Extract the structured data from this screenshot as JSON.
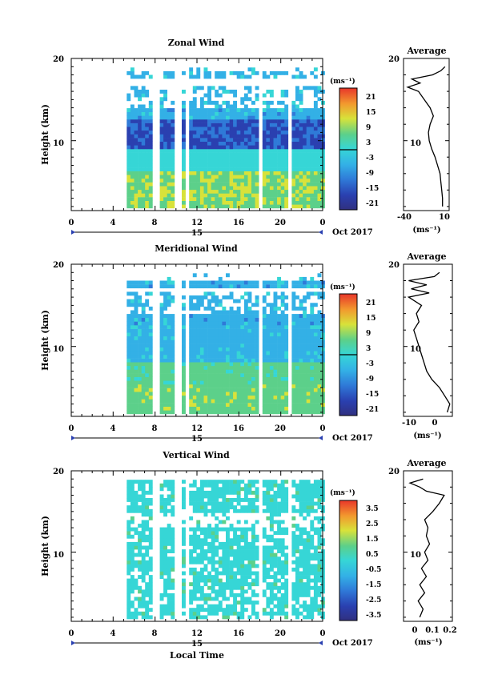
{
  "figure": {
    "xlabel": "Local Time",
    "date_label": "Oct 2017",
    "day_label": "15"
  },
  "chart_data": [
    {
      "type": "heatmap",
      "title": "Zonal Wind",
      "ylabel": "Height (km)",
      "unit_label": "(ms⁻¹)",
      "x_ticks": [
        "0",
        "4",
        "8",
        "12",
        "16",
        "20",
        "0"
      ],
      "y_ticks": [
        "10",
        "20"
      ],
      "xlim": [
        0,
        24
      ],
      "ylim": [
        1.5,
        20
      ],
      "colorbar_ticks": [
        "21",
        "15",
        "9",
        "3",
        "-3",
        "-9",
        "-15",
        "-21"
      ],
      "colorbar_range": [
        -24,
        24
      ],
      "data_time_start": 5.3,
      "data_gaps_hours": [
        [
          7.6,
          8.1
        ],
        [
          9.6,
          10.3
        ],
        [
          10.8,
          11.2
        ],
        [
          17.6,
          18.1
        ],
        [
          20.4,
          20.9
        ]
      ],
      "average_profile": {
        "title": "Average",
        "x_ticks": [
          "-40",
          "10"
        ],
        "xlim": [
          -40,
          15
        ],
        "x_unit": "(ms⁻¹)",
        "height_km": [
          2,
          3,
          4,
          5,
          6,
          7,
          8,
          9,
          10,
          11,
          12,
          13,
          14,
          15,
          16,
          16.5,
          17,
          17.5,
          18,
          18.5,
          19
        ],
        "values": [
          7,
          7,
          6,
          5,
          4,
          1,
          -2,
          -6,
          -9,
          -10,
          -8,
          -4,
          -8,
          -15,
          -22,
          -35,
          -20,
          -30,
          -5,
          5,
          10
        ]
      }
    },
    {
      "type": "heatmap",
      "title": "Meridional Wind",
      "ylabel": "Height (km)",
      "unit_label": "(ms⁻¹)",
      "x_ticks": [
        "0",
        "4",
        "8",
        "12",
        "16",
        "20",
        "0"
      ],
      "y_ticks": [
        "10",
        "20"
      ],
      "xlim": [
        0,
        24
      ],
      "ylim": [
        1.5,
        20
      ],
      "colorbar_ticks": [
        "21",
        "15",
        "9",
        "3",
        "-3",
        "-9",
        "-15",
        "-21"
      ],
      "colorbar_range": [
        -24,
        24
      ],
      "data_time_start": 5.3,
      "data_gaps_hours": [
        [
          7.6,
          8.1
        ],
        [
          9.6,
          10.3
        ],
        [
          10.8,
          11.2
        ],
        [
          17.6,
          18.1
        ],
        [
          20.4,
          20.9
        ]
      ],
      "average_profile": {
        "title": "Average",
        "x_ticks": [
          "-10",
          "0"
        ],
        "xlim": [
          -14,
          5
        ],
        "x_unit": "(ms⁻¹)",
        "height_km": [
          2,
          3,
          4,
          5,
          6,
          7,
          8,
          9,
          10,
          11,
          12,
          13,
          14,
          15,
          16,
          16.5,
          17,
          17.5,
          18,
          18.5,
          19
        ],
        "values": [
          3,
          4,
          2,
          0,
          -3,
          -5,
          -6,
          -7,
          -8,
          -9,
          -10,
          -8,
          -9,
          -7,
          -12,
          -4,
          -11,
          -5,
          -12,
          -2,
          0
        ]
      }
    },
    {
      "type": "heatmap",
      "title": "Vertical Wind",
      "ylabel": "Height (km)",
      "unit_label": "(ms⁻¹)",
      "x_ticks": [
        "0",
        "4",
        "8",
        "12",
        "16",
        "20",
        "0"
      ],
      "y_ticks": [
        "10",
        "20"
      ],
      "xlim": [
        0,
        24
      ],
      "ylim": [
        1.5,
        20
      ],
      "colorbar_ticks": [
        "3.5",
        "2.5",
        "1.5",
        "0.5",
        "-0.5",
        "-1.5",
        "-2.5",
        "-3.5"
      ],
      "colorbar_range": [
        -4,
        4
      ],
      "data_time_start": 5.3,
      "data_gaps_hours": [
        [
          7.6,
          8.1
        ],
        [
          9.6,
          10.3
        ],
        [
          10.8,
          11.2
        ],
        [
          17.6,
          18.1
        ],
        [
          20.4,
          20.9
        ]
      ],
      "average_profile": {
        "title": "Average",
        "x_ticks": [
          "0",
          "0.1",
          "0.2"
        ],
        "xlim": [
          -0.1,
          0.2
        ],
        "x_unit": "(ms⁻¹)",
        "height_km": [
          2,
          3,
          4,
          5,
          6,
          7,
          8,
          9,
          10,
          11,
          12,
          13,
          14,
          15,
          16,
          17,
          17.5,
          18,
          18.5,
          19
        ],
        "values": [
          0.0,
          0.02,
          -0.01,
          0.03,
          0.0,
          0.04,
          0.01,
          0.05,
          0.03,
          0.06,
          0.04,
          0.05,
          0.03,
          0.08,
          0.12,
          0.15,
          0.04,
          0.0,
          -0.06,
          0.02
        ]
      }
    }
  ]
}
